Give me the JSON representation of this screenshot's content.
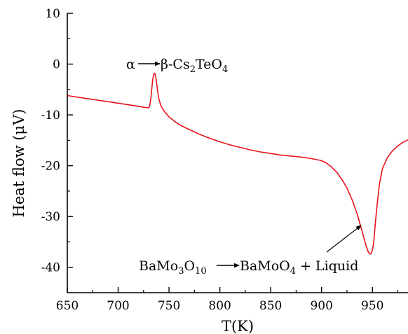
{
  "chart_data": {
    "type": "line",
    "xlabel": "T(K)",
    "ylabel": "Heat flow (μV)",
    "xlim": [
      650,
      985
    ],
    "ylim": [
      -45,
      10
    ],
    "x_ticks": [
      "650",
      "700",
      "750",
      "800",
      "850",
      "900",
      "950"
    ],
    "y_ticks": [
      "10",
      "0",
      "-10",
      "-20",
      "-30",
      "-40"
    ],
    "grid": false,
    "legend": "none",
    "colors": {
      "line": "#e8141c",
      "axis": "#000000"
    },
    "series": [
      {
        "x": [
          650,
          660,
          670,
          680,
          690,
          700,
          710,
          720,
          725,
          730,
          731,
          732,
          733,
          734,
          735,
          736,
          737,
          738,
          739,
          740,
          742,
          745,
          748,
          750,
          755,
          760,
          770,
          780,
          790,
          800,
          810,
          820,
          830,
          840,
          850,
          860,
          870,
          880,
          890,
          900,
          905,
          910,
          915,
          920,
          925,
          930,
          935,
          940,
          942,
          944,
          946,
          948,
          949,
          950,
          951,
          952,
          953,
          955,
          957,
          960,
          965,
          970,
          975,
          980,
          985
        ],
        "y": [
          -6.2,
          -6.5,
          -6.8,
          -7.1,
          -7.4,
          -7.7,
          -8.0,
          -8.3,
          -8.5,
          -8.6,
          -8.2,
          -7.0,
          -5.0,
          -3.0,
          -2.0,
          -1.8,
          -2.5,
          -4.0,
          -5.6,
          -6.8,
          -8.2,
          -9.2,
          -9.9,
          -10.4,
          -11.2,
          -11.9,
          -12.9,
          -13.8,
          -14.6,
          -15.3,
          -15.9,
          -16.4,
          -16.9,
          -17.3,
          -17.6,
          -17.9,
          -18.1,
          -18.3,
          -18.6,
          -19.0,
          -19.5,
          -20.3,
          -21.3,
          -22.7,
          -24.4,
          -26.7,
          -29.5,
          -33.0,
          -34.5,
          -35.9,
          -37.0,
          -37.4,
          -37.2,
          -36.6,
          -35.5,
          -33.5,
          -31.0,
          -27.0,
          -23.5,
          -20.5,
          -18.3,
          -17.0,
          -16.1,
          -15.4,
          -14.9
        ]
      }
    ],
    "annotations": [
      {
        "parts": {
          "a1": "α",
          "a2": "β-Cs",
          "a3": "2",
          "a4": "TeO",
          "a5": "4"
        }
      },
      {
        "parts": {
          "b1": "BaMo",
          "b2": "3",
          "b3": "O",
          "b4": "10",
          "b5": "BaMoO",
          "b6": "4",
          "b7": " + Liquid"
        }
      }
    ]
  }
}
